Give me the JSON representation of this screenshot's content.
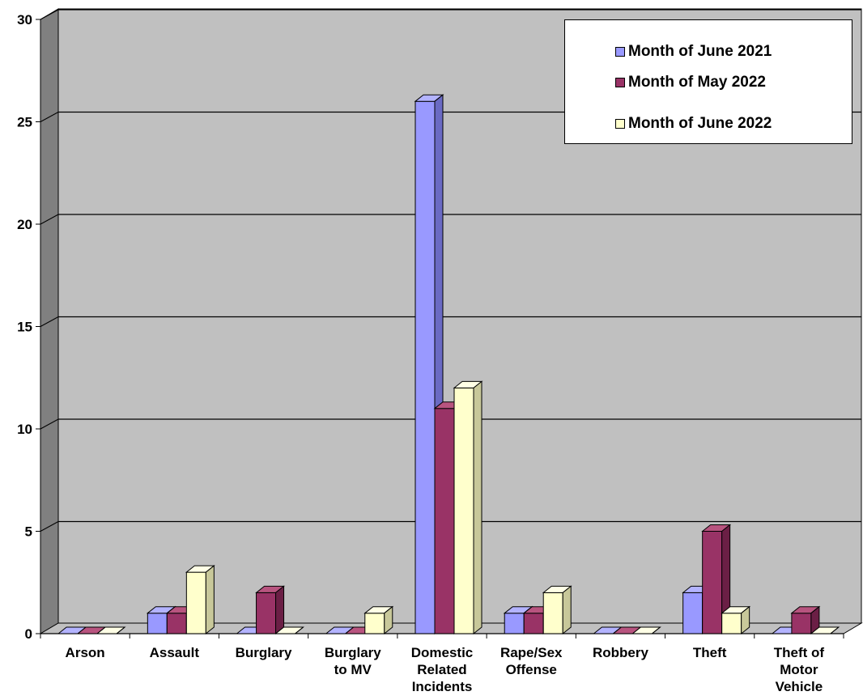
{
  "chart_data": {
    "type": "bar",
    "title": "",
    "xlabel": "",
    "ylabel": "",
    "ylim": [
      0,
      30
    ],
    "y_ticks": [
      0,
      5,
      10,
      15,
      20,
      25,
      30
    ],
    "grid": true,
    "legend_position": "top-right",
    "categories": [
      [
        "Arson"
      ],
      [
        "Assault"
      ],
      [
        "Burglary"
      ],
      [
        "Burglary",
        "to MV"
      ],
      [
        "Domestic",
        "Related",
        "Incidents"
      ],
      [
        "Rape/Sex",
        "Offense"
      ],
      [
        "Robbery"
      ],
      [
        "Theft"
      ],
      [
        "Theft of",
        "Motor",
        "Vehicle"
      ]
    ],
    "series": [
      {
        "name": "Month of June 2021",
        "color": "#9999ff",
        "values": [
          0,
          1,
          0,
          0,
          26,
          1,
          0,
          2,
          0
        ]
      },
      {
        "name": "Month of May 2022",
        "color": "#993366",
        "values": [
          0,
          1,
          2,
          0,
          11,
          1,
          0,
          5,
          1
        ]
      },
      {
        "name": "Month of June 2022",
        "color": "#ffffcc",
        "values": [
          0,
          3,
          0,
          1,
          12,
          2,
          0,
          1,
          0
        ]
      }
    ]
  }
}
